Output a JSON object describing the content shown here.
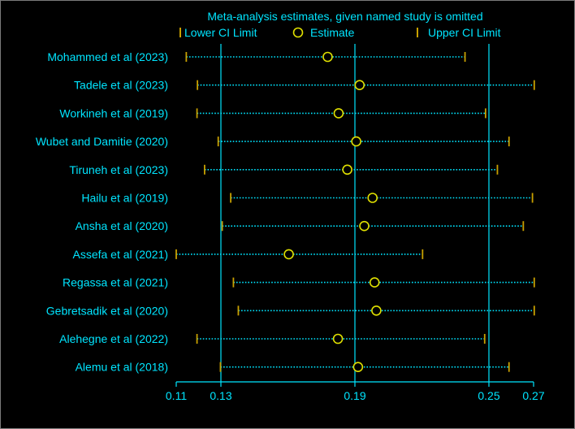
{
  "chart_data": {
    "type": "scatter",
    "title": "Meta-analysis estimates, given named study is omitted",
    "legend": {
      "placement": "top",
      "entries": [
        {
          "key": "lower",
          "label": "Lower CI Limit",
          "marker": "tick"
        },
        {
          "key": "estimate",
          "label": "Estimate",
          "marker": "circle"
        },
        {
          "key": "upper",
          "label": "Upper CI Limit",
          "marker": "tick"
        }
      ]
    },
    "xlim": [
      0.11,
      0.27
    ],
    "xticks": [
      0.11,
      0.13,
      0.19,
      0.25,
      0.27
    ],
    "xtick_labels": [
      "0.11",
      "0.13",
      "0.19",
      "0.25",
      "0.27"
    ],
    "reference_lines": [
      0.13,
      0.19,
      0.25
    ],
    "grid": false,
    "studies": [
      {
        "name": "Mohammed et al (2023)",
        "lower": 0.1145,
        "estimate": 0.1778,
        "upper": 0.2393
      },
      {
        "name": "Tadele et al (2023)",
        "lower": 0.1195,
        "estimate": 0.1921,
        "upper": 0.2703
      },
      {
        "name": "Workineh et al (2019)",
        "lower": 0.1193,
        "estimate": 0.1827,
        "upper": 0.2485
      },
      {
        "name": "Wubet and Damitie (2020)",
        "lower": 0.1288,
        "estimate": 0.1906,
        "upper": 0.259
      },
      {
        "name": "Tiruneh et al (2023)",
        "lower": 0.1227,
        "estimate": 0.1866,
        "upper": 0.2538
      },
      {
        "name": "Hailu et al (2019)",
        "lower": 0.1344,
        "estimate": 0.1979,
        "upper": 0.2695
      },
      {
        "name": "Ansha et al (2020)",
        "lower": 0.1306,
        "estimate": 0.1942,
        "upper": 0.2654
      },
      {
        "name": "Assefa et al (2021)",
        "lower": 0.11,
        "estimate": 0.1604,
        "upper": 0.2203
      },
      {
        "name": "Regassa et al (2021)",
        "lower": 0.1356,
        "estimate": 0.1988,
        "upper": 0.2703
      },
      {
        "name": "Gebretsadik et al (2020)",
        "lower": 0.1378,
        "estimate": 0.1996,
        "upper": 0.2703
      },
      {
        "name": "Alehegne et al (2022)",
        "lower": 0.1193,
        "estimate": 0.1824,
        "upper": 0.2481
      },
      {
        "name": "Alemu et al (2018)",
        "lower": 0.1298,
        "estimate": 0.1914,
        "upper": 0.259
      }
    ]
  },
  "colors": {
    "background": "#000000",
    "text": "#00e5ff",
    "axis": "#00e5ff",
    "ci_line": "#00e5ff",
    "ci_tick": "#c8a000",
    "estimate": "#e0e000",
    "frame": "#7a7a7a"
  }
}
